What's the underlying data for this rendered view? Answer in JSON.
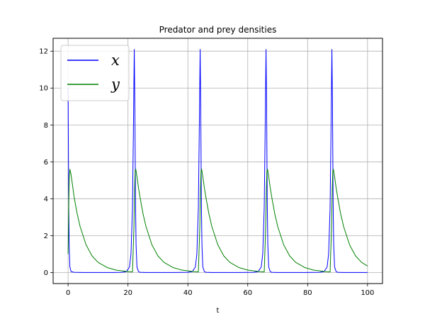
{
  "chart_data": {
    "type": "line",
    "title": "Predator and prey densities",
    "xlabel": "t",
    "ylabel": "",
    "xlim": [
      -5,
      105
    ],
    "ylim": [
      -0.6,
      12.7
    ],
    "xticks": [
      0,
      20,
      40,
      60,
      80,
      100
    ],
    "yticks": [
      0,
      2,
      4,
      6,
      8,
      10,
      12
    ],
    "grid": true,
    "legend_position": "top-left",
    "series": [
      {
        "name": "x",
        "color": "#0000ff",
        "x": [
          0,
          0.1,
          0.2,
          0.35,
          0.6,
          1,
          2,
          5,
          10,
          15,
          18,
          19.5,
          20.5,
          21,
          21.5,
          21.8,
          22.1,
          22.3,
          22.5,
          22.7,
          23,
          23.5,
          24,
          26,
          30,
          35,
          40,
          41.5,
          42.5,
          43,
          43.5,
          43.8,
          44.1,
          44.3,
          44.5,
          44.7,
          45,
          45.5,
          46,
          48,
          52,
          57,
          62,
          63.5,
          64.5,
          65,
          65.5,
          65.8,
          66.1,
          66.3,
          66.5,
          66.7,
          67,
          67.5,
          68,
          70,
          74,
          79,
          84,
          85.5,
          86.5,
          87,
          87.5,
          87.8,
          88.1,
          88.3,
          88.5,
          88.7,
          89,
          89.5,
          90,
          92,
          96,
          100
        ],
        "y": [
          10,
          7,
          4,
          1.5,
          0.3,
          0.05,
          0.01,
          0,
          0,
          0,
          0.01,
          0.05,
          0.3,
          1,
          3.5,
          7.5,
          12.1,
          9,
          4,
          1.5,
          0.3,
          0.05,
          0.01,
          0,
          0,
          0,
          0.01,
          0.05,
          0.3,
          1,
          3.5,
          7.5,
          12.1,
          9,
          4,
          1.5,
          0.3,
          0.05,
          0.01,
          0,
          0,
          0,
          0.01,
          0.05,
          0.3,
          1,
          3.5,
          7.5,
          12.1,
          9,
          4,
          1.5,
          0.3,
          0.05,
          0.01,
          0,
          0,
          0,
          0.01,
          0.05,
          0.3,
          1,
          3.5,
          7.5,
          12.1,
          9,
          4,
          1.5,
          0.3,
          0.05,
          0.01,
          0,
          0,
          0
        ]
      },
      {
        "name": "y",
        "color": "#008000",
        "x": [
          0,
          0.2,
          0.4,
          0.6,
          1,
          1.5,
          2,
          3,
          4,
          6,
          8,
          10,
          13,
          16,
          20,
          21.5,
          22,
          22.2,
          22.4,
          22.6,
          23,
          23.5,
          24,
          25,
          26,
          28,
          30,
          32,
          35,
          38,
          42,
          43.5,
          44,
          44.2,
          44.4,
          44.6,
          45,
          45.5,
          46,
          47,
          48,
          50,
          52,
          54,
          57,
          60,
          64,
          65.5,
          66,
          66.2,
          66.4,
          66.6,
          67,
          67.5,
          68,
          69,
          70,
          72,
          74,
          76,
          79,
          82,
          86,
          87.5,
          88,
          88.2,
          88.4,
          88.6,
          89,
          89.5,
          90,
          91,
          92,
          94,
          96,
          98,
          100
        ],
        "y": [
          1,
          3.5,
          5.2,
          5.6,
          5.3,
          4.7,
          4.1,
          3.2,
          2.5,
          1.5,
          0.9,
          0.55,
          0.27,
          0.13,
          0.05,
          0.03,
          2.5,
          4.5,
          5.5,
          5.6,
          5.2,
          4.6,
          4.1,
          3.2,
          2.5,
          1.5,
          0.9,
          0.55,
          0.27,
          0.13,
          0.05,
          0.03,
          2.5,
          4.5,
          5.5,
          5.6,
          5.2,
          4.6,
          4.1,
          3.2,
          2.5,
          1.5,
          0.9,
          0.55,
          0.27,
          0.13,
          0.05,
          0.03,
          2.5,
          4.5,
          5.5,
          5.6,
          5.2,
          4.6,
          4.1,
          3.2,
          2.5,
          1.5,
          0.9,
          0.55,
          0.27,
          0.13,
          0.05,
          0.03,
          2.5,
          4.5,
          5.5,
          5.6,
          5.2,
          4.6,
          4.1,
          3.2,
          2.5,
          1.5,
          0.9,
          0.55,
          0.35
        ]
      }
    ]
  }
}
